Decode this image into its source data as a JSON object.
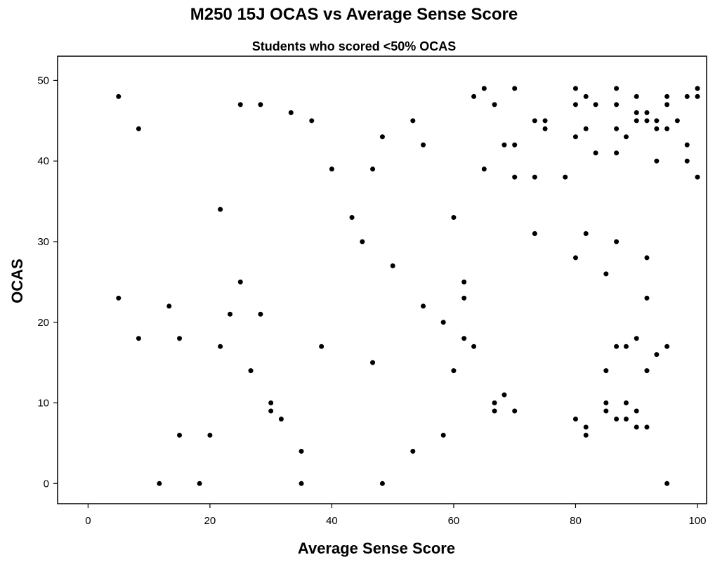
{
  "chart_data": {
    "type": "scatter",
    "title": "M250 15J OCAS vs Average Sense Score",
    "subtitle": "Students who scored <50% OCAS",
    "xlabel": "Average Sense Score",
    "ylabel": "OCAS",
    "xlim": [
      -5,
      101.5
    ],
    "ylim": [
      -2.5,
      53
    ],
    "xticks": [
      0,
      20,
      40,
      60,
      80,
      100
    ],
    "yticks": [
      0,
      10,
      20,
      30,
      40,
      50
    ],
    "grid": false,
    "legend": "none",
    "point_color": "#000000",
    "points": [
      [
        5,
        48
      ],
      [
        8.3,
        44
      ],
      [
        25,
        47
      ],
      [
        28.3,
        47
      ],
      [
        33.3,
        46
      ],
      [
        36.7,
        45
      ],
      [
        21.7,
        34
      ],
      [
        40,
        39
      ],
      [
        46.7,
        39
      ],
      [
        48.3,
        43
      ],
      [
        43.3,
        33
      ],
      [
        45,
        30
      ],
      [
        50,
        27
      ],
      [
        53.3,
        45
      ],
      [
        55,
        42
      ],
      [
        63.3,
        48
      ],
      [
        65,
        49
      ],
      [
        66.7,
        47
      ],
      [
        70,
        49
      ],
      [
        68.3,
        42
      ],
      [
        70,
        42
      ],
      [
        65,
        39
      ],
      [
        70,
        38
      ],
      [
        73.3,
        45
      ],
      [
        75,
        45
      ],
      [
        75,
        44
      ],
      [
        73.3,
        38
      ],
      [
        78.3,
        38
      ],
      [
        60,
        33
      ],
      [
        73.3,
        31
      ],
      [
        80,
        49
      ],
      [
        80,
        47
      ],
      [
        81.7,
        48
      ],
      [
        83.3,
        47
      ],
      [
        86.7,
        49
      ],
      [
        86.7,
        47
      ],
      [
        90,
        48
      ],
      [
        90,
        46
      ],
      [
        90,
        45
      ],
      [
        91.7,
        46
      ],
      [
        91.7,
        45
      ],
      [
        93.3,
        45
      ],
      [
        93.3,
        44
      ],
      [
        95,
        48
      ],
      [
        95,
        47
      ],
      [
        95,
        44
      ],
      [
        96.7,
        45
      ],
      [
        98.3,
        48
      ],
      [
        100,
        49
      ],
      [
        100,
        48
      ],
      [
        80,
        43
      ],
      [
        81.7,
        44
      ],
      [
        86.7,
        44
      ],
      [
        88.3,
        43
      ],
      [
        83.3,
        41
      ],
      [
        86.7,
        41
      ],
      [
        98.3,
        42
      ],
      [
        93.3,
        40
      ],
      [
        98.3,
        40
      ],
      [
        100,
        38
      ],
      [
        81.7,
        31
      ],
      [
        86.7,
        30
      ],
      [
        80,
        28
      ],
      [
        91.7,
        28
      ],
      [
        85,
        26
      ],
      [
        91.7,
        23
      ],
      [
        5,
        23
      ],
      [
        13.3,
        22
      ],
      [
        8.3,
        18
      ],
      [
        15,
        18
      ],
      [
        21.7,
        17
      ],
      [
        23.3,
        21
      ],
      [
        28.3,
        21
      ],
      [
        25,
        25
      ],
      [
        26.7,
        14
      ],
      [
        38.3,
        17
      ],
      [
        46.7,
        15
      ],
      [
        55,
        22
      ],
      [
        58.3,
        20
      ],
      [
        61.7,
        25
      ],
      [
        61.7,
        23
      ],
      [
        61.7,
        18
      ],
      [
        63.3,
        17
      ],
      [
        60,
        14
      ],
      [
        86.7,
        17
      ],
      [
        88.3,
        17
      ],
      [
        90,
        18
      ],
      [
        93.3,
        16
      ],
      [
        95,
        17
      ],
      [
        85,
        14
      ],
      [
        91.7,
        14
      ],
      [
        30,
        10
      ],
      [
        30,
        9
      ],
      [
        31.7,
        8
      ],
      [
        66.7,
        10
      ],
      [
        66.7,
        9
      ],
      [
        68.3,
        11
      ],
      [
        70,
        9
      ],
      [
        85,
        10
      ],
      [
        85,
        9
      ],
      [
        88.3,
        10
      ],
      [
        90,
        9
      ],
      [
        80,
        8
      ],
      [
        81.7,
        7
      ],
      [
        81.7,
        6
      ],
      [
        86.7,
        8
      ],
      [
        88.3,
        8
      ],
      [
        90,
        7
      ],
      [
        91.7,
        7
      ],
      [
        15,
        6
      ],
      [
        20,
        6
      ],
      [
        35,
        4
      ],
      [
        53.3,
        4
      ],
      [
        58.3,
        6
      ],
      [
        11.7,
        0
      ],
      [
        18.3,
        0
      ],
      [
        35,
        0
      ],
      [
        48.3,
        0
      ],
      [
        95,
        0
      ]
    ]
  }
}
